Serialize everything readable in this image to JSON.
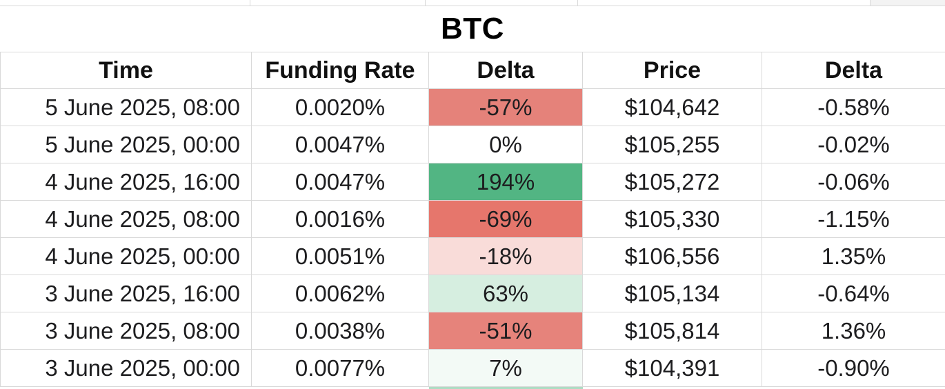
{
  "chart_data": {
    "type": "table",
    "title": "BTC",
    "columns": [
      "Time",
      "Funding Rate",
      "Delta",
      "Price",
      "Delta"
    ],
    "rows": [
      {
        "time": "5 June 2025, 08:00",
        "funding_rate": "0.0020%",
        "funding_rate_delta": "-57%",
        "funding_delta_bg": "#e5827a",
        "price": "$104,642",
        "price_delta": "-0.58%"
      },
      {
        "time": "5 June 2025, 00:00",
        "funding_rate": "0.0047%",
        "funding_rate_delta": "0%",
        "funding_delta_bg": "#ffffff",
        "price": "$105,255",
        "price_delta": "-0.02%"
      },
      {
        "time": "4 June 2025, 16:00",
        "funding_rate": "0.0047%",
        "funding_rate_delta": "194%",
        "funding_delta_bg": "#52b583",
        "price": "$105,272",
        "price_delta": "-0.06%"
      },
      {
        "time": "4 June 2025, 08:00",
        "funding_rate": "0.0016%",
        "funding_rate_delta": "-69%",
        "funding_delta_bg": "#e6766c",
        "price": "$105,330",
        "price_delta": "-1.15%"
      },
      {
        "time": "4 June 2025, 00:00",
        "funding_rate": "0.0051%",
        "funding_rate_delta": "-18%",
        "funding_delta_bg": "#f9dcd9",
        "price": "$106,556",
        "price_delta": "1.35%"
      },
      {
        "time": "3 June 2025, 16:00",
        "funding_rate": "0.0062%",
        "funding_rate_delta": "63%",
        "funding_delta_bg": "#d6eee0",
        "price": "$105,134",
        "price_delta": "-0.64%"
      },
      {
        "time": "3 June 2025, 08:00",
        "funding_rate": "0.0038%",
        "funding_rate_delta": "-51%",
        "funding_delta_bg": "#e6837b",
        "price": "$105,814",
        "price_delta": "1.36%"
      },
      {
        "time": "3 June 2025, 00:00",
        "funding_rate": "0.0077%",
        "funding_rate_delta": "7%",
        "funding_delta_bg": "#f3faf6",
        "price": "$104,391",
        "price_delta": "-0.90%"
      }
    ],
    "next_row_peek": {
      "funding_delta_bg": "#aedcc4"
    },
    "layout": {
      "grid": "on",
      "delta_color_scale": {
        "negative": "#e6766c",
        "neutral": "#ffffff",
        "positive": "#52b583"
      }
    }
  },
  "colors": {
    "grid_line": "#d9d9d9",
    "text": "#1d1d1f",
    "title_text": "#000000",
    "negative_strong": "#e6766c",
    "positive_strong": "#52b583"
  }
}
